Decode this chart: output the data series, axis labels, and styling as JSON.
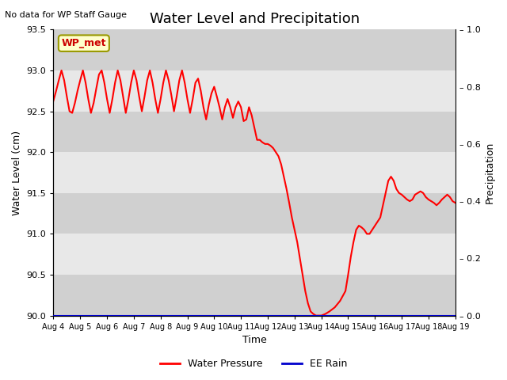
{
  "title": "Water Level and Precipitation",
  "top_left_text": "No data for WP Staff Gauge",
  "legend_label_box": "WP_met",
  "ylabel_left": "Water Level (cm)",
  "ylabel_right": "Precipitation",
  "xlabel": "Time",
  "ylim_left": [
    90.0,
    93.5
  ],
  "ylim_right": [
    0.0,
    1.0
  ],
  "yticks_left": [
    90.0,
    90.5,
    91.0,
    91.5,
    92.0,
    92.5,
    93.0,
    93.5
  ],
  "yticks_right": [
    0.0,
    0.2,
    0.4,
    0.6,
    0.8,
    1.0
  ],
  "xtick_labels": [
    "Aug 4",
    "Aug 5",
    "Aug 6",
    "Aug 7",
    "Aug 8",
    "Aug 9",
    "Aug 10",
    "Aug 11",
    "Aug 12",
    "Aug 13",
    "Aug 14",
    "Aug 15",
    "Aug 16",
    "Aug 17",
    "Aug 18",
    "Aug 19"
  ],
  "water_pressure_color": "#ff0000",
  "ee_rain_color": "#0000cc",
  "background_color": "#ffffff",
  "plot_bg_color": "#e0e0e0",
  "band_light": "#e8e8e8",
  "band_dark": "#d0d0d0",
  "legend_box_bg": "#ffffcc",
  "legend_box_edge": "#999900",
  "legend_box_text_color": "#cc0000",
  "title_fontsize": 13,
  "axis_fontsize": 9,
  "tick_fontsize": 8,
  "water_pressure_x": [
    0.0,
    0.1,
    0.2,
    0.3,
    0.4,
    0.5,
    0.6,
    0.7,
    0.8,
    0.9,
    1.0,
    1.1,
    1.2,
    1.3,
    1.4,
    1.5,
    1.6,
    1.7,
    1.8,
    1.9,
    2.0,
    2.1,
    2.2,
    2.3,
    2.4,
    2.5,
    2.6,
    2.7,
    2.8,
    2.9,
    3.0,
    3.1,
    3.2,
    3.3,
    3.4,
    3.5,
    3.6,
    3.7,
    3.8,
    3.9,
    4.0,
    4.1,
    4.2,
    4.3,
    4.4,
    4.5,
    4.6,
    4.7,
    4.8,
    4.9,
    5.0,
    5.1,
    5.2,
    5.3,
    5.4,
    5.5,
    5.6,
    5.7,
    5.8,
    5.9,
    6.0,
    6.1,
    6.2,
    6.3,
    6.4,
    6.5,
    6.6,
    6.7,
    6.8,
    6.9,
    7.0,
    7.1,
    7.2,
    7.3,
    7.4,
    7.5,
    7.6,
    7.7,
    7.8,
    7.9,
    8.0,
    8.1,
    8.2,
    8.3,
    8.4,
    8.5,
    8.6,
    8.7,
    8.8,
    8.9,
    9.0,
    9.1,
    9.2,
    9.3,
    9.4,
    9.5,
    9.6,
    9.7,
    9.8,
    9.9,
    10.0,
    10.15,
    10.3,
    10.5,
    10.7,
    10.9,
    11.0,
    11.1,
    11.2,
    11.3,
    11.4,
    11.5,
    11.6,
    11.7,
    11.8,
    11.9,
    12.0,
    12.1,
    12.2,
    12.3,
    12.4,
    12.5,
    12.6,
    12.7,
    12.8,
    12.9,
    13.0,
    13.1,
    13.2,
    13.3,
    13.4,
    13.5,
    13.6,
    13.7,
    13.8,
    13.9,
    14.0,
    14.1,
    14.2,
    14.3,
    14.4,
    14.5,
    14.6,
    14.7,
    14.8,
    14.9,
    15.0
  ],
  "water_pressure_y": [
    92.63,
    92.75,
    92.88,
    93.0,
    92.88,
    92.68,
    92.5,
    92.48,
    92.6,
    92.75,
    92.88,
    93.0,
    92.85,
    92.65,
    92.48,
    92.6,
    92.78,
    92.95,
    93.0,
    92.85,
    92.65,
    92.48,
    92.65,
    92.85,
    93.0,
    92.88,
    92.68,
    92.48,
    92.65,
    92.85,
    93.0,
    92.88,
    92.68,
    92.5,
    92.68,
    92.88,
    93.0,
    92.85,
    92.65,
    92.48,
    92.65,
    92.85,
    93.0,
    92.88,
    92.7,
    92.5,
    92.68,
    92.88,
    93.0,
    92.85,
    92.65,
    92.48,
    92.65,
    92.85,
    92.9,
    92.75,
    92.55,
    92.4,
    92.58,
    92.72,
    92.8,
    92.68,
    92.55,
    92.4,
    92.55,
    92.65,
    92.55,
    92.42,
    92.55,
    92.62,
    92.55,
    92.38,
    92.4,
    92.55,
    92.45,
    92.3,
    92.15,
    92.15,
    92.12,
    92.1,
    92.1,
    92.08,
    92.05,
    92.0,
    91.95,
    91.85,
    91.7,
    91.55,
    91.38,
    91.2,
    91.05,
    90.9,
    90.7,
    90.5,
    90.3,
    90.15,
    90.05,
    90.02,
    90.0,
    90.0,
    90.0,
    90.02,
    90.05,
    90.1,
    90.18,
    90.3,
    90.5,
    90.72,
    90.9,
    91.05,
    91.1,
    91.08,
    91.05,
    91.0,
    91.0,
    91.05,
    91.1,
    91.15,
    91.2,
    91.35,
    91.5,
    91.65,
    91.7,
    91.65,
    91.55,
    91.5,
    91.48,
    91.45,
    91.42,
    91.4,
    91.42,
    91.48,
    91.5,
    91.52,
    91.5,
    91.45,
    91.42,
    91.4,
    91.38,
    91.35,
    91.38,
    91.42,
    91.45,
    91.48,
    91.45,
    91.4,
    91.38
  ]
}
